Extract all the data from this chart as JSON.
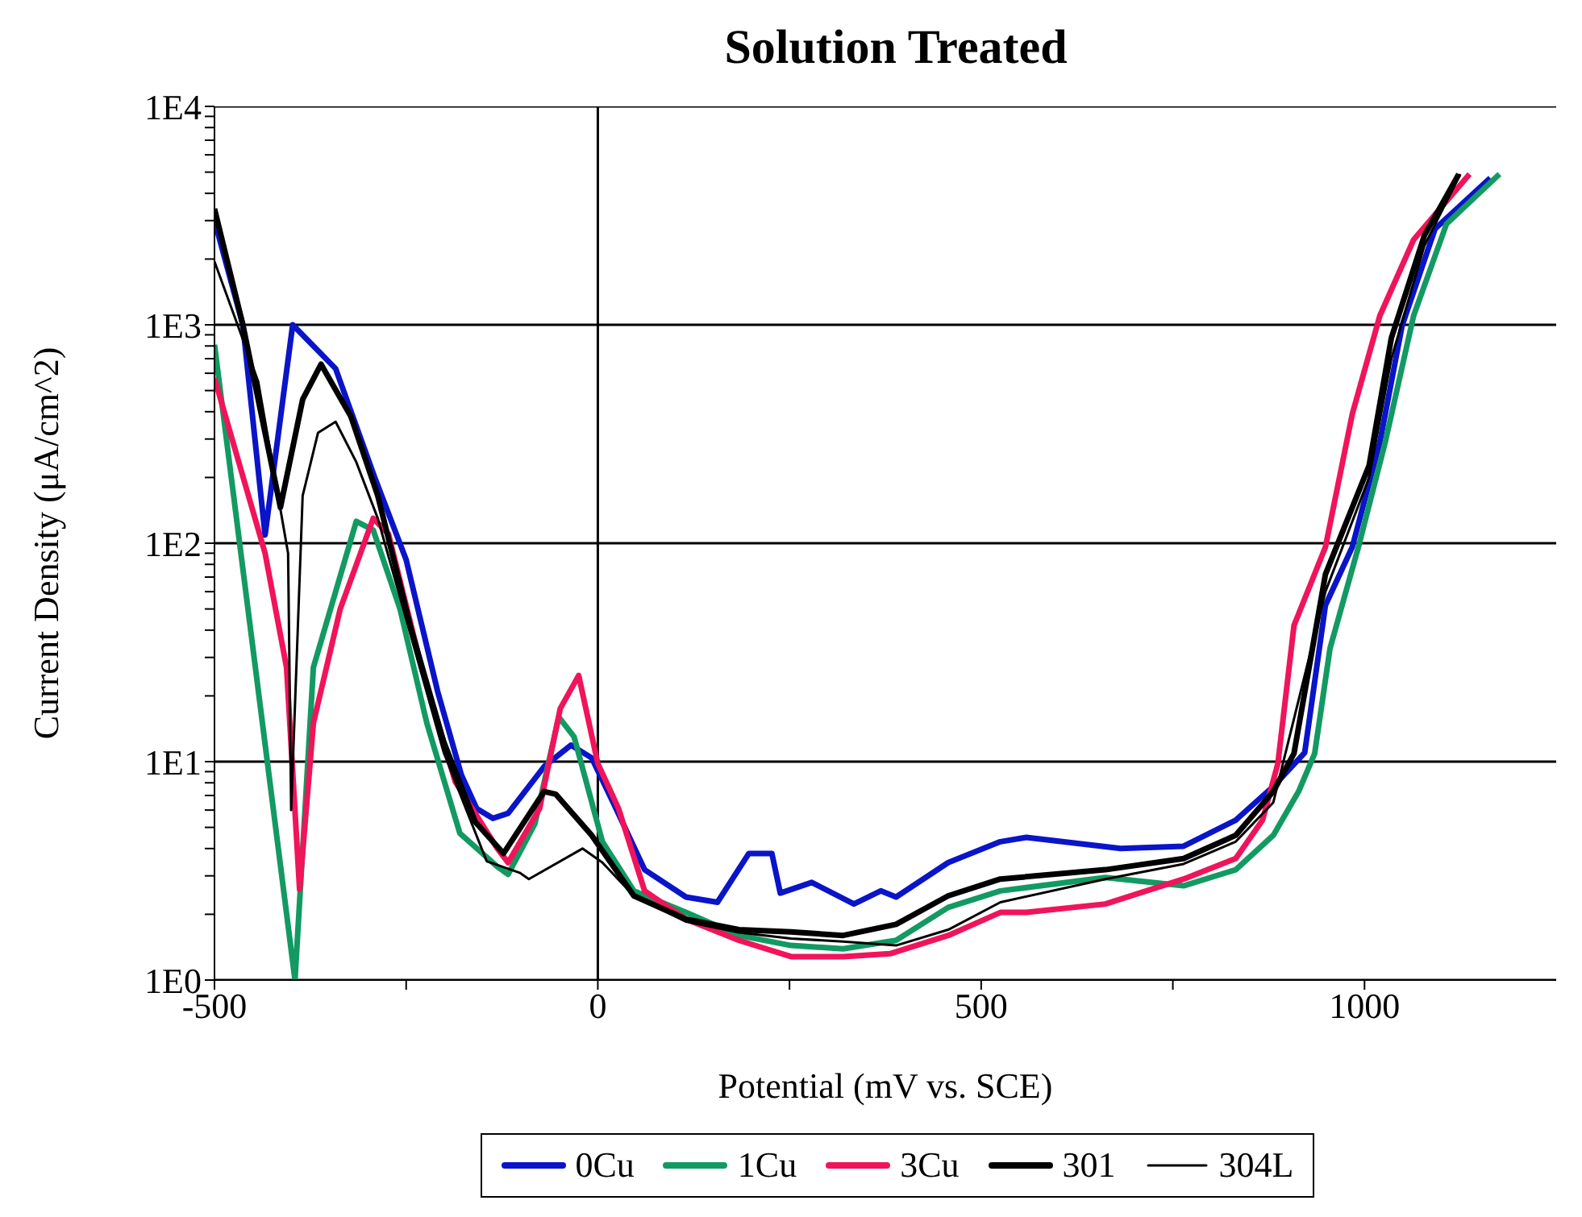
{
  "chart_data": {
    "type": "line",
    "title": "Solution Treated",
    "xlabel": "Potential (mV vs. SCE)",
    "ylabel": "Current Density (μA/cm^2)",
    "xlim": [
      -500,
      1250
    ],
    "xticks": [
      -500,
      {
        "value": -250,
        "label": null
      },
      0,
      {
        "value": 250,
        "label": null
      },
      500,
      {
        "value": 750,
        "label": null
      },
      1000
    ],
    "ylim": [
      1,
      10000
    ],
    "log": "y",
    "grid": "y",
    "yticks": [
      {
        "value": 1,
        "label": "1E0"
      },
      {
        "value": 2,
        "label": null
      },
      {
        "value": 3,
        "label": null
      },
      {
        "value": 4,
        "label": null
      },
      {
        "value": 5,
        "label": null
      },
      {
        "value": 6,
        "label": null
      },
      {
        "value": 7,
        "label": null
      },
      {
        "value": 8,
        "label": null
      },
      {
        "value": 9,
        "label": null
      },
      {
        "value": 10,
        "label": "1E1"
      },
      {
        "value": 20,
        "label": null
      },
      {
        "value": 30,
        "label": null
      },
      {
        "value": 40,
        "label": null
      },
      {
        "value": 50,
        "label": null
      },
      {
        "value": 60,
        "label": null
      },
      {
        "value": 70,
        "label": null
      },
      {
        "value": 80,
        "label": null
      },
      {
        "value": 90,
        "label": null
      },
      {
        "value": 100,
        "label": "1E2"
      },
      {
        "value": 200,
        "label": null
      },
      {
        "value": 300,
        "label": null
      },
      {
        "value": 400,
        "label": null
      },
      {
        "value": 500,
        "label": null
      },
      {
        "value": 600,
        "label": null
      },
      {
        "value": 700,
        "label": null
      },
      {
        "value": 800,
        "label": null
      },
      {
        "value": 900,
        "label": null
      },
      {
        "value": 1000,
        "label": "1E3"
      },
      {
        "value": 2000,
        "label": null
      },
      {
        "value": 3000,
        "label": null
      },
      {
        "value": 4000,
        "label": null
      },
      {
        "value": 5000,
        "label": null
      },
      {
        "value": 6000,
        "label": null
      },
      {
        "value": 7000,
        "label": null
      },
      {
        "value": 8000,
        "label": null
      },
      {
        "value": 9000,
        "label": null
      },
      {
        "value": 10000,
        "label": "1E4"
      }
    ],
    "ref_lines": [
      {
        "axis": "x",
        "value": 0,
        "color": "#000000"
      }
    ],
    "legend": "bottom",
    "marker": "none",
    "line_style": "solid",
    "series": [
      {
        "name": "0Cu",
        "color": "#0a14c8",
        "x": [
          -500,
          -463,
          -434,
          -398,
          -342,
          -291,
          -250,
          -209,
          -178,
          -158,
          -137,
          -117,
          -70,
          -35,
          -8,
          20,
          61,
          115,
          156,
          197,
          227,
          238,
          279,
          334,
          369,
          389,
          457,
          525,
          559,
          682,
          764,
          832,
          881,
          922,
          949,
          984,
          1020,
          1049,
          1092,
          1164
        ],
        "values": [
          3000,
          1000,
          109,
          1000,
          630,
          200,
          84,
          21,
          8.7,
          6.1,
          5.5,
          5.8,
          9.5,
          11.9,
          10.4,
          6.5,
          3.2,
          2.4,
          2.27,
          3.8,
          3.8,
          2.5,
          2.8,
          2.23,
          2.56,
          2.4,
          3.45,
          4.3,
          4.5,
          4.0,
          4.1,
          5.4,
          7.7,
          11,
          52,
          96,
          290,
          990,
          2750,
          4700
        ]
      },
      {
        "name": "1Cu",
        "color": "#129a62",
        "x": [
          -500,
          -395,
          -371,
          -315,
          -293,
          -258,
          -223,
          -180,
          -131,
          -117,
          -82,
          -51,
          -31,
          6,
          47,
          115,
          184,
          252,
          320,
          389,
          457,
          525,
          662,
          764,
          832,
          881,
          914,
          935,
          955,
          992,
          1027,
          1064,
          1107,
          1176
        ],
        "values": [
          810,
          1.0,
          27,
          126,
          115,
          50,
          15,
          4.7,
          3.3,
          3.05,
          5.2,
          16,
          13,
          4.3,
          2.56,
          2.04,
          1.6,
          1.44,
          1.39,
          1.52,
          2.15,
          2.56,
          2.95,
          2.7,
          3.2,
          4.6,
          7.3,
          10.9,
          33,
          96,
          290,
          1100,
          2900,
          4900
        ]
      },
      {
        "name": "3Cu",
        "color": "#f0145a",
        "x": [
          -500,
          -434,
          -406,
          -389,
          -371,
          -336,
          -293,
          -273,
          -230,
          -186,
          -131,
          -117,
          -76,
          -49,
          -25,
          0,
          27,
          61,
          115,
          184,
          252,
          320,
          381,
          457,
          525,
          559,
          662,
          764,
          832,
          867,
          887,
          908,
          949,
          984,
          1020,
          1064,
          1137
        ],
        "values": [
          570,
          90,
          27,
          2.6,
          15,
          50,
          130,
          110,
          27,
          8.1,
          4,
          3.45,
          6.1,
          17.5,
          24.8,
          9.8,
          6.1,
          2.56,
          1.9,
          1.52,
          1.28,
          1.28,
          1.32,
          1.6,
          2.04,
          2.04,
          2.23,
          2.9,
          3.6,
          5.4,
          9.8,
          42,
          96,
          390,
          1100,
          2450,
          4900
        ]
      },
      {
        "name": "301",
        "color": "#000000",
        "x": [
          -500,
          -463,
          -414,
          -385,
          -361,
          -322,
          -287,
          -244,
          -201,
          -160,
          -123,
          -70,
          -55,
          -8,
          47,
          115,
          184,
          252,
          320,
          389,
          457,
          525,
          662,
          764,
          832,
          881,
          908,
          949,
          1006,
          1035,
          1078,
          1123
        ],
        "values": [
          3400,
          1000,
          146,
          455,
          660,
          380,
          165,
          41,
          12.3,
          5.3,
          3.8,
          7.3,
          7.1,
          4.6,
          2.43,
          1.9,
          1.7,
          1.66,
          1.6,
          1.8,
          2.43,
          2.9,
          3.2,
          3.6,
          4.6,
          7.3,
          10.9,
          72,
          227,
          870,
          2560,
          4900
        ]
      },
      {
        "name": "304L",
        "color": "#000000",
        "x": [
          -500,
          -443,
          -404,
          -400,
          -385,
          -365,
          -342,
          -315,
          -287,
          -201,
          -145,
          -102,
          -90,
          -20,
          6,
          47,
          115,
          184,
          252,
          320,
          389,
          457,
          525,
          662,
          764,
          832,
          881,
          949,
          1006,
          1035,
          1078,
          1125
        ],
        "values": [
          1950,
          550,
          90,
          6,
          165,
          320,
          360,
          235,
          130,
          11,
          3.5,
          3.1,
          2.9,
          4,
          3.45,
          2.43,
          1.85,
          1.65,
          1.55,
          1.5,
          1.44,
          1.7,
          2.27,
          2.9,
          3.4,
          4.3,
          6.5,
          60,
          200,
          700,
          2300,
          4900
        ]
      }
    ]
  }
}
